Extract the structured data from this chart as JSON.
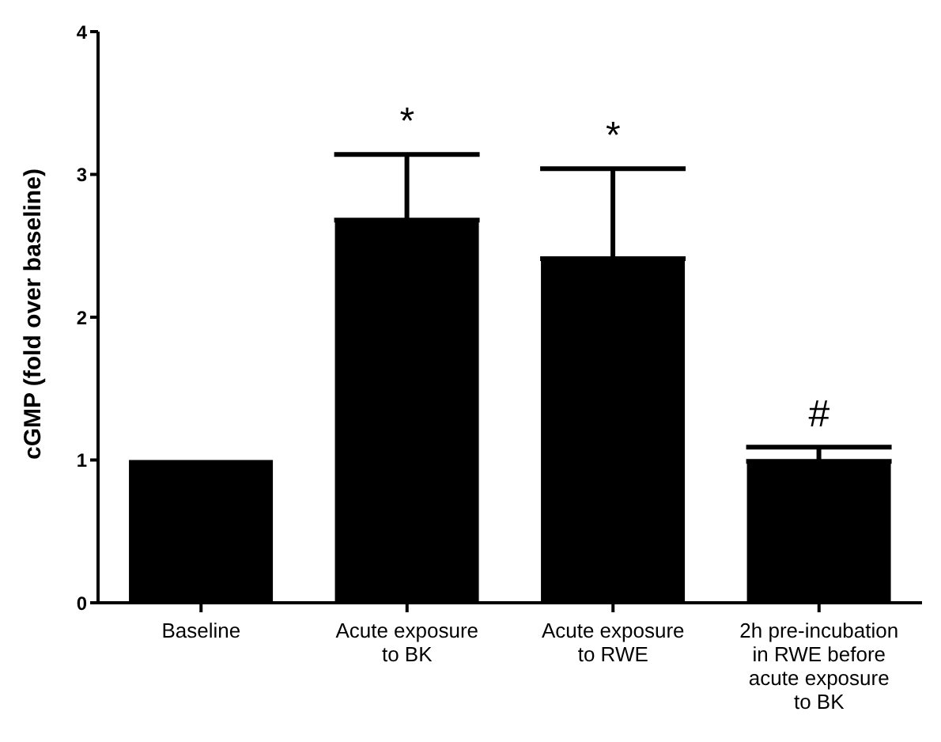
{
  "chart_data": {
    "type": "bar",
    "ylabel": "cGMP (fold over baseline)",
    "categories": [
      "Baseline",
      "Acute exposure to BK",
      "Acute exposure to RWE",
      "2h pre-incubation in RWE before acute exposure to BK"
    ],
    "values": [
      1.0,
      2.68,
      2.41,
      0.99
    ],
    "errors": [
      null,
      0.46,
      0.63,
      0.1
    ],
    "color": "#000000",
    "ylim": [
      0,
      4
    ],
    "yticks": [
      0,
      1,
      2,
      3,
      4
    ],
    "grid": false,
    "annotations": [
      "*",
      "*",
      "#"
    ]
  }
}
